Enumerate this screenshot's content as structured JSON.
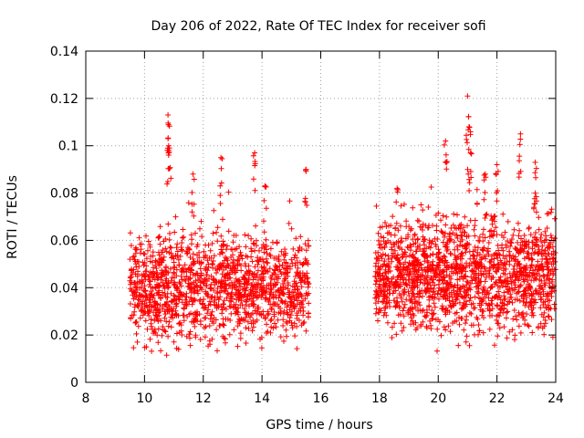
{
  "chart_data": {
    "type": "scatter",
    "title": "Day 206 of 2022, Rate Of TEC Index for receiver sofi",
    "xlabel": "GPS time / hours",
    "ylabel": "ROTI / TECUs",
    "xlim": [
      8,
      24
    ],
    "ylim": [
      0,
      0.14
    ],
    "xticks": [
      "8",
      "10",
      "12",
      "14",
      "16",
      "18",
      "20",
      "22",
      "24"
    ],
    "yticks": [
      "0",
      "0.02",
      "0.04",
      "0.06",
      "0.08",
      "0.1",
      "0.12",
      "0.14"
    ],
    "grid": true,
    "marker": "plus",
    "color": "#ff0000",
    "segments": [
      {
        "x_start": 9.5,
        "x_end": 15.6,
        "y_low": 0.012,
        "y_high": 0.067,
        "count": 1400
      },
      {
        "x_start": 17.85,
        "x_end": 24.0,
        "y_low": 0.014,
        "y_high": 0.075,
        "count": 1600
      }
    ],
    "peaks": [
      {
        "x": 10.8,
        "y": 0.113
      },
      {
        "x": 10.8,
        "y": 0.103
      },
      {
        "x": 10.85,
        "y": 0.099
      },
      {
        "x": 11.65,
        "y": 0.088
      },
      {
        "x": 12.6,
        "y": 0.095
      },
      {
        "x": 13.75,
        "y": 0.097
      },
      {
        "x": 14.1,
        "y": 0.083
      },
      {
        "x": 15.5,
        "y": 0.09
      },
      {
        "x": 18.6,
        "y": 0.082
      },
      {
        "x": 20.25,
        "y": 0.102
      },
      {
        "x": 21.0,
        "y": 0.121
      },
      {
        "x": 21.05,
        "y": 0.108
      },
      {
        "x": 21.1,
        "y": 0.097
      },
      {
        "x": 22.0,
        "y": 0.092
      },
      {
        "x": 22.8,
        "y": 0.105
      },
      {
        "x": 23.3,
        "y": 0.093
      },
      {
        "x": 23.3,
        "y": 0.08
      },
      {
        "x": 21.6,
        "y": 0.088
      }
    ]
  }
}
